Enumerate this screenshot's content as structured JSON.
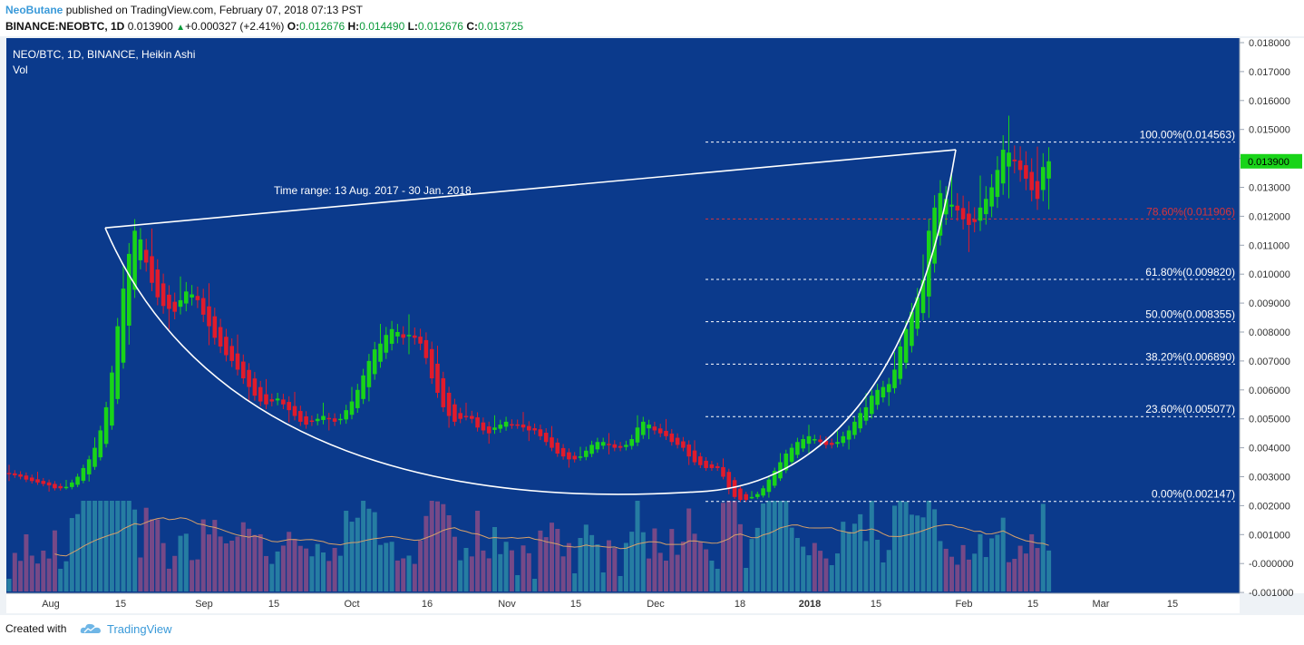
{
  "header": {
    "author": "NeoButane",
    "published_text": "published on TradingView.com, February 07, 2018 07:13 PST",
    "symbol": "BINANCE:NEOBTC, 1D",
    "last": "0.013900",
    "change_arrow": "▲",
    "change": "+0.000327 (+2.41%)",
    "o_label": "O:",
    "o": "0.012676",
    "h_label": "H:",
    "h": "0.014490",
    "l_label": "L:",
    "l": "0.012676",
    "c_label": "C:",
    "c": "0.013725"
  },
  "legend": {
    "title": "NEO/BTC, 1D, BINANCE, Heikin Ashi",
    "vol": "Vol"
  },
  "chart_data": {
    "type": "candlestick",
    "style": "Heikin Ashi",
    "symbol": "NEO/BTC",
    "timeframe": "1D",
    "exchange": "BINANCE",
    "price_axis": {
      "ylim": [
        -0.001,
        0.018
      ],
      "ticks": [
        "0.018000",
        "0.017000",
        "0.016000",
        "0.015000",
        "0.014000",
        "0.013000",
        "0.012000",
        "0.011000",
        "0.010000",
        "0.009000",
        "0.008000",
        "0.007000",
        "0.006000",
        "0.005000",
        "0.004000",
        "0.003000",
        "0.002000",
        "0.001000",
        "-0.000000",
        "-0.001000"
      ],
      "last_price_label": "0.013900"
    },
    "time_axis": {
      "ticks": [
        "Aug",
        "15",
        "Sep",
        "15",
        "Oct",
        "16",
        "Nov",
        "15",
        "Dec",
        "18",
        "2018",
        "15",
        "Feb",
        "15",
        "Mar",
        "15"
      ],
      "bold": [
        "2018"
      ]
    },
    "colors": {
      "background": "#0b3a8c",
      "up": "#19d419",
      "down": "#e11b2b",
      "vol_up": "#2b8aa6",
      "vol_down": "#8a4c86",
      "vol_ma": "#d6a06a",
      "fib_label": "#ffffff",
      "fib_786": "#d8343b",
      "lines": "#ffffff"
    },
    "annotation": "Time range: 13 Aug. 2017 - 30 Jan. 2018",
    "fibonacci": [
      {
        "label": "100.00%(0.014563)",
        "price": 0.014563
      },
      {
        "label": "78.60%(0.011906)",
        "price": 0.011906
      },
      {
        "label": "61.80%(0.009820)",
        "price": 0.00982
      },
      {
        "label": "50.00%(0.008355)",
        "price": 0.008355
      },
      {
        "label": "38.20%(0.006890)",
        "price": 0.00689
      },
      {
        "label": "23.60%(0.005077)",
        "price": 0.005077
      },
      {
        "label": "0.00%(0.002147)",
        "price": 0.002147
      }
    ],
    "trendline": {
      "from": [
        "2017-08-13",
        0.0116
      ],
      "to": [
        "2018-01-30",
        0.0143
      ]
    },
    "closes": [
      0.0031,
      0.00305,
      0.003,
      0.0029,
      0.00285,
      0.0028,
      0.00275,
      0.0027,
      0.0026,
      0.0026,
      0.00265,
      0.0028,
      0.003,
      0.0033,
      0.0036,
      0.004,
      0.0046,
      0.0054,
      0.0066,
      0.0082,
      0.0095,
      0.0107,
      0.0115,
      0.0112,
      0.0104,
      0.0097,
      0.0092,
      0.0089,
      0.0088,
      0.0087,
      0.0091,
      0.0094,
      0.0093,
      0.0091,
      0.0086,
      0.0082,
      0.0078,
      0.0075,
      0.0072,
      0.007,
      0.0067,
      0.0064,
      0.0061,
      0.0058,
      0.0056,
      0.0055,
      0.0056,
      0.0057,
      0.0055,
      0.0053,
      0.0051,
      0.0049,
      0.0048,
      0.0049,
      0.005,
      0.0051,
      0.005,
      0.0049,
      0.005,
      0.0053,
      0.0056,
      0.006,
      0.0065,
      0.007,
      0.0074,
      0.0076,
      0.0079,
      0.0081,
      0.008,
      0.0078,
      0.0079,
      0.0078,
      0.0076,
      0.0071,
      0.0064,
      0.0059,
      0.0054,
      0.0051,
      0.0049,
      0.005,
      0.0051,
      0.005,
      0.0047,
      0.0046,
      0.0045,
      0.0047,
      0.0048,
      0.0049,
      0.0048,
      0.0048,
      0.0047,
      0.0046,
      0.0046,
      0.0044,
      0.0042,
      0.004,
      0.0038,
      0.0037,
      0.0036,
      0.0036,
      0.0037,
      0.0039,
      0.0041,
      0.0042,
      0.0042,
      0.0041,
      0.004,
      0.004,
      0.0041,
      0.0043,
      0.0047,
      0.0049,
      0.0048,
      0.0046,
      0.0045,
      0.0044,
      0.0042,
      0.0041,
      0.004,
      0.0037,
      0.0035,
      0.0034,
      0.0033,
      0.0033,
      0.0033,
      0.003,
      0.0026,
      0.0023,
      0.0022,
      0.0022,
      0.0023,
      0.0024,
      0.0026,
      0.0029,
      0.0032,
      0.0035,
      0.0038,
      0.004,
      0.0042,
      0.0043,
      0.0044,
      0.0043,
      0.0042,
      0.0041,
      0.0041,
      0.0042,
      0.0044,
      0.0046,
      0.0049,
      0.0052,
      0.0054,
      0.0058,
      0.006,
      0.0061,
      0.0062,
      0.0067,
      0.0075,
      0.0081,
      0.0087,
      0.0092,
      0.0098,
      0.0115,
      0.0123,
      0.0128,
      0.0126,
      0.0124,
      0.0122,
      0.0119,
      0.0117,
      0.0118,
      0.0123,
      0.0126,
      0.013,
      0.0136,
      0.0143,
      0.0142,
      0.0139,
      0.0136,
      0.0133,
      0.0129,
      0.0126,
      0.0137,
      0.0139
    ]
  },
  "footer": {
    "created_with": "Created with",
    "brand": "TradingView"
  }
}
